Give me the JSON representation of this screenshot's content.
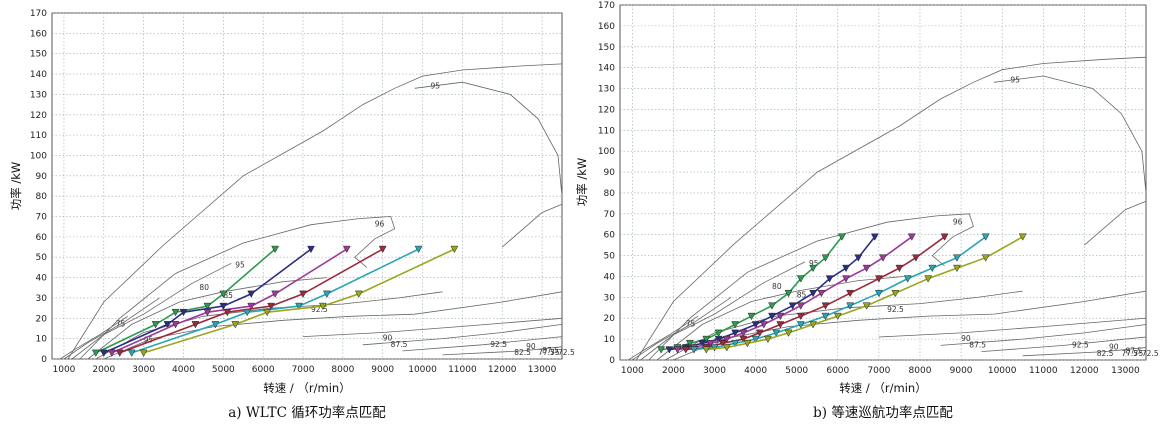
{
  "chart_data": [
    {
      "id": "a",
      "caption": "a) WLTC 循环功率点匹配",
      "type": "line",
      "xlabel": "转速 / （r/min）",
      "ylabel": "功率 /kW",
      "xlim": [
        700,
        13500
      ],
      "ylim": [
        0,
        170
      ],
      "xticks": [
        1000,
        2000,
        3000,
        4000,
        5000,
        6000,
        7000,
        8000,
        9000,
        10000,
        11000,
        12000,
        13000
      ],
      "yticks": [
        0,
        10,
        20,
        30,
        40,
        50,
        60,
        70,
        80,
        90,
        100,
        110,
        120,
        130,
        140,
        150,
        160,
        170
      ],
      "grid": true,
      "contour_labels": [
        "95",
        "96",
        "95",
        "92.5",
        "90",
        "87.5",
        "85",
        "80",
        "75",
        "95",
        "92.5",
        "90",
        "87.5",
        "82.5",
        "77.5",
        "75",
        "72.5"
      ],
      "series": [
        {
          "color": "#2e9a4e",
          "x": [
            1800,
            3300,
            3800,
            4600,
            5000,
            6300
          ],
          "y": [
            3,
            17,
            23,
            26,
            32,
            54
          ]
        },
        {
          "color": "#2b2f83",
          "x": [
            2000,
            3600,
            4000,
            5000,
            5700,
            7200
          ],
          "y": [
            3,
            17,
            23,
            26,
            32,
            54
          ]
        },
        {
          "color": "#9b3a9b",
          "x": [
            2200,
            3800,
            4600,
            5700,
            6300,
            8100
          ],
          "y": [
            3,
            17,
            23,
            26,
            32,
            54
          ]
        },
        {
          "color": "#9b2a3f",
          "x": [
            2400,
            4300,
            5100,
            6200,
            7000,
            9000
          ],
          "y": [
            3,
            17,
            23,
            26,
            32,
            54
          ]
        },
        {
          "color": "#2aa6b3",
          "x": [
            2700,
            4800,
            5600,
            6900,
            7600,
            9900
          ],
          "y": [
            3,
            17,
            23,
            26,
            32,
            54
          ]
        },
        {
          "color": "#9aa61e",
          "x": [
            3000,
            5300,
            6100,
            7500,
            8400,
            10800
          ],
          "y": [
            3,
            17,
            23,
            26,
            32,
            54
          ]
        }
      ]
    },
    {
      "id": "b",
      "caption": "b) 等速巡航功率点匹配",
      "type": "line",
      "xlabel": "转速 / （r/min）",
      "ylabel": "功率 /kW",
      "xlim": [
        700,
        13500
      ],
      "ylim": [
        0,
        170
      ],
      "xticks": [
        1000,
        2000,
        3000,
        4000,
        5000,
        6000,
        7000,
        8000,
        9000,
        10000,
        11000,
        12000,
        13000
      ],
      "yticks": [
        0,
        10,
        20,
        30,
        40,
        50,
        60,
        70,
        80,
        90,
        100,
        110,
        120,
        130,
        140,
        150,
        160,
        170
      ],
      "grid": true,
      "contour_labels": [
        "95",
        "96",
        "95",
        "92.5",
        "90",
        "87.5",
        "85",
        "80",
        "75",
        "95",
        "92.5",
        "90",
        "87.5",
        "82.5",
        "77.5",
        "75",
        "72.5"
      ],
      "series": [
        {
          "color": "#2e9a4e",
          "x": [
            1700,
            2100,
            2400,
            2800,
            3100,
            3500,
            3900,
            4400,
            4800,
            5100,
            5400,
            5700,
            6100
          ],
          "y": [
            5,
            6,
            8,
            10,
            13,
            17,
            21,
            26,
            32,
            39,
            44,
            49,
            59
          ]
        },
        {
          "color": "#2b2f83",
          "x": [
            1900,
            2300,
            2700,
            3100,
            3500,
            4000,
            4400,
            4900,
            5400,
            5800,
            6200,
            6500,
            6900
          ],
          "y": [
            5,
            6,
            8,
            10,
            13,
            17,
            21,
            26,
            32,
            39,
            44,
            49,
            59
          ]
        },
        {
          "color": "#9b3a9b",
          "x": [
            2100,
            2500,
            2900,
            3300,
            3700,
            4200,
            4600,
            5100,
            5600,
            6200,
            6700,
            7100,
            7800
          ],
          "y": [
            5,
            6,
            8,
            10,
            13,
            17,
            21,
            26,
            32,
            39,
            44,
            49,
            59
          ]
        },
        {
          "color": "#9b2a3f",
          "x": [
            2300,
            2800,
            3200,
            3700,
            4100,
            4600,
            5100,
            5700,
            6300,
            7000,
            7500,
            7900,
            8600
          ],
          "y": [
            5,
            6,
            8,
            10,
            13,
            17,
            21,
            26,
            32,
            39,
            44,
            49,
            59
          ]
        },
        {
          "color": "#2aa6b3",
          "x": [
            2500,
            3000,
            3500,
            4000,
            4500,
            5100,
            5700,
            6300,
            7000,
            7700,
            8300,
            8900,
            9600
          ],
          "y": [
            5,
            6,
            8,
            10,
            13,
            17,
            21,
            26,
            32,
            39,
            44,
            49,
            59
          ]
        },
        {
          "color": "#9aa61e",
          "x": [
            2800,
            3300,
            3800,
            4300,
            4800,
            5400,
            6000,
            6700,
            7400,
            8200,
            8900,
            9600,
            10500
          ],
          "y": [
            5,
            6,
            8,
            10,
            13,
            17,
            21,
            26,
            32,
            39,
            44,
            49,
            59
          ]
        }
      ]
    }
  ]
}
